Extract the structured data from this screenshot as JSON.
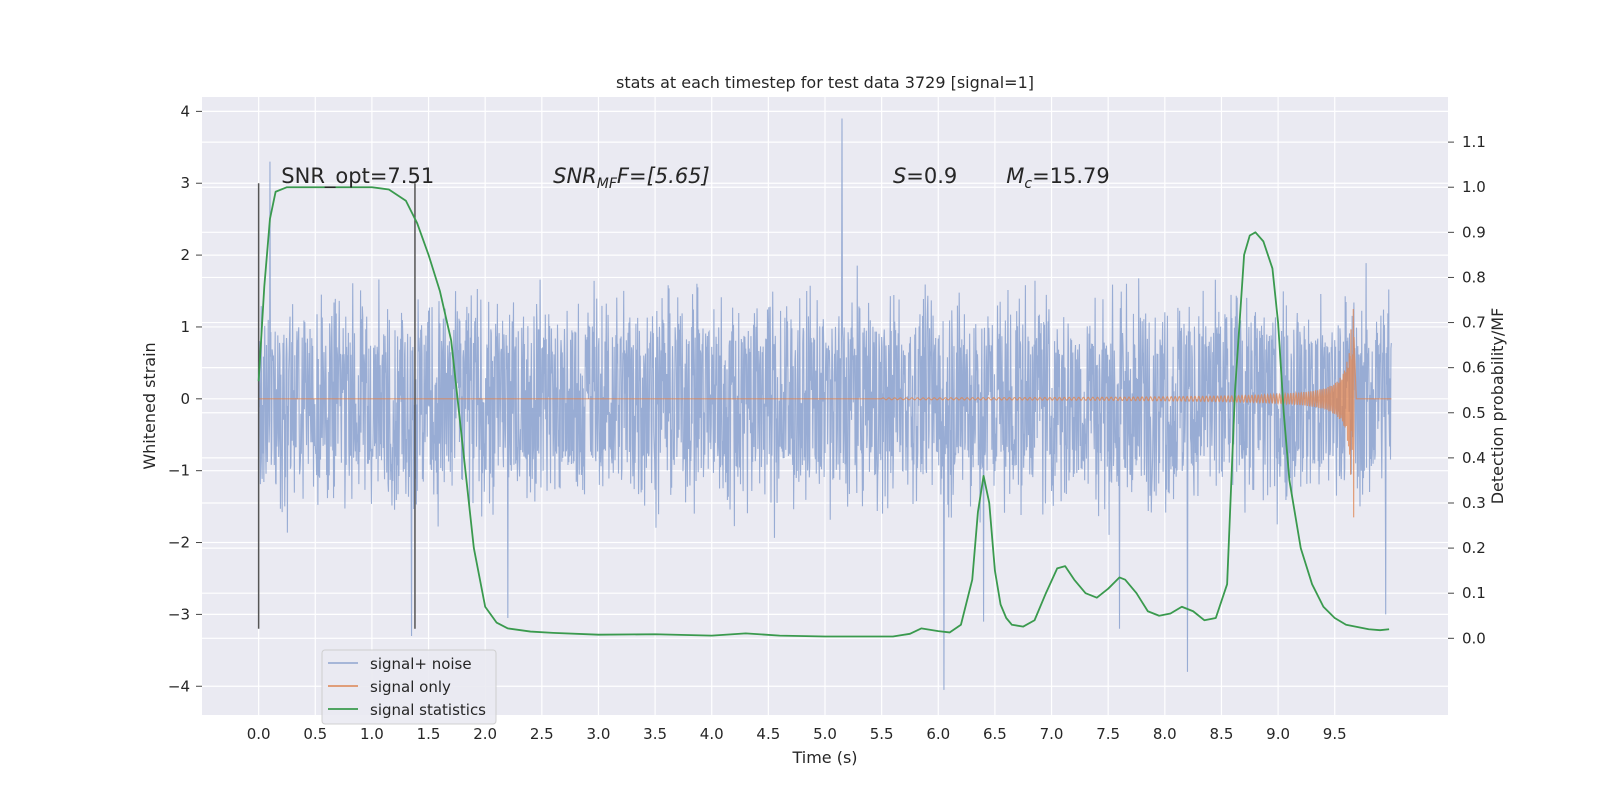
{
  "chart_data": {
    "type": "line",
    "title": "stats at each timestep for test data 3729 [signal=1]",
    "xlabel": "Time (s)",
    "ylabel": "Whitened strain",
    "y2label": "Detection probability/MF",
    "xlim": [
      -0.5,
      10.5
    ],
    "ylim": [
      -4.4,
      4.2
    ],
    "y2lim": [
      -0.17,
      1.2
    ],
    "grid": true,
    "legend_position": "lower-left",
    "x_ticks": [
      0.0,
      0.5,
      1.0,
      1.5,
      2.0,
      2.5,
      3.0,
      3.5,
      4.0,
      4.5,
      5.0,
      5.5,
      6.0,
      6.5,
      7.0,
      7.5,
      8.0,
      8.5,
      9.0,
      9.5
    ],
    "x_tick_labels": [
      "0.0",
      "0.5",
      "1.0",
      "1.5",
      "2.0",
      "2.5",
      "3.0",
      "3.5",
      "4.0",
      "4.5",
      "5.0",
      "5.5",
      "6.0",
      "6.5",
      "7.0",
      "7.5",
      "8.0",
      "8.5",
      "9.0",
      "9.5"
    ],
    "y_ticks": [
      -4,
      -3,
      -2,
      -1,
      0,
      1,
      2,
      3,
      4
    ],
    "y_tick_labels": [
      "−4",
      "−3",
      "−2",
      "−1",
      "0",
      "1",
      "2",
      "3",
      "4"
    ],
    "y2_ticks": [
      0.0,
      0.1,
      0.2,
      0.3,
      0.4,
      0.5,
      0.6,
      0.7,
      0.8,
      0.9,
      1.0,
      1.1
    ],
    "y2_tick_labels": [
      "0.0",
      "0.1",
      "0.2",
      "0.3",
      "0.4",
      "0.5",
      "0.6",
      "0.7",
      "0.8",
      "0.9",
      "1.0",
      "1.1"
    ],
    "series": [
      {
        "name": "signal+ noise",
        "color": "#8fa5d0",
        "axis": "left",
        "x_range": [
          0.0,
          10.0
        ],
        "typical_range": [
          -1.9,
          1.9
        ],
        "extremes": [
          {
            "x": 0.1,
            "y": 3.3
          },
          {
            "x": 1.35,
            "y": -3.3
          },
          {
            "x": 2.2,
            "y": -3.05
          },
          {
            "x": 5.15,
            "y": 3.9
          },
          {
            "x": 6.05,
            "y": -4.05
          },
          {
            "x": 6.4,
            "y": -3.1
          },
          {
            "x": 7.6,
            "y": -3.2
          },
          {
            "x": 8.2,
            "y": -3.8
          },
          {
            "x": 9.95,
            "y": -3.0
          }
        ]
      },
      {
        "name": "signal only",
        "color": "#dd8452",
        "axis": "left",
        "chirp_start": 5.5,
        "merger_time": 9.67,
        "peak_amplitude": 1.25,
        "min_amplitude": -1.65
      },
      {
        "name": "signal statistics",
        "color": "#3a9a4e",
        "axis": "right",
        "x": [
          0.0,
          0.05,
          0.1,
          0.15,
          0.25,
          0.5,
          0.8,
          1.0,
          1.15,
          1.3,
          1.4,
          1.5,
          1.6,
          1.7,
          1.8,
          1.9,
          2.0,
          2.1,
          2.2,
          2.4,
          2.6,
          3.0,
          3.5,
          4.0,
          4.3,
          4.6,
          5.0,
          5.3,
          5.6,
          5.75,
          5.85,
          6.0,
          6.1,
          6.2,
          6.3,
          6.35,
          6.4,
          6.45,
          6.5,
          6.55,
          6.6,
          6.65,
          6.75,
          6.85,
          6.95,
          7.05,
          7.12,
          7.2,
          7.3,
          7.4,
          7.5,
          7.6,
          7.65,
          7.75,
          7.85,
          7.95,
          8.05,
          8.15,
          8.25,
          8.35,
          8.45,
          8.55,
          8.62,
          8.7,
          8.75,
          8.8,
          8.87,
          8.95,
          9.0,
          9.05,
          9.1,
          9.2,
          9.3,
          9.4,
          9.5,
          9.6,
          9.7,
          9.8,
          9.9,
          9.98
        ],
        "y": [
          0.57,
          0.78,
          0.93,
          0.99,
          1.0,
          1.0,
          1.0,
          1.0,
          0.995,
          0.97,
          0.92,
          0.85,
          0.77,
          0.66,
          0.43,
          0.2,
          0.07,
          0.035,
          0.022,
          0.015,
          0.012,
          0.008,
          0.009,
          0.006,
          0.011,
          0.006,
          0.004,
          0.004,
          0.004,
          0.01,
          0.022,
          0.016,
          0.013,
          0.03,
          0.13,
          0.28,
          0.36,
          0.3,
          0.15,
          0.075,
          0.045,
          0.03,
          0.026,
          0.04,
          0.1,
          0.155,
          0.16,
          0.13,
          0.1,
          0.09,
          0.11,
          0.135,
          0.13,
          0.1,
          0.06,
          0.05,
          0.055,
          0.07,
          0.06,
          0.04,
          0.045,
          0.12,
          0.55,
          0.85,
          0.893,
          0.9,
          0.88,
          0.82,
          0.7,
          0.5,
          0.35,
          0.2,
          0.12,
          0.07,
          0.045,
          0.03,
          0.025,
          0.02,
          0.018,
          0.02
        ]
      }
    ],
    "vertical_markers": [
      {
        "x": 0.0,
        "y_range": [
          -3.2,
          3.0
        ]
      },
      {
        "x": 1.38,
        "y_range": [
          -3.2,
          3.0
        ]
      }
    ],
    "annotations": [
      {
        "text": "SNR_opt=7.51",
        "x": 0.2,
        "y": 3.0
      },
      {
        "text_main": "SNR",
        "text_sub": "MF",
        "text_rest": "F=[5.65]",
        "x": 2.6,
        "y": 3.0
      },
      {
        "text_main": "S",
        "text_rest": "=0.9",
        "x": 5.6,
        "y": 3.0
      },
      {
        "text_main": "M",
        "text_sub": "c",
        "text_rest": "=15.79",
        "x": 6.6,
        "y": 3.0
      }
    ]
  }
}
